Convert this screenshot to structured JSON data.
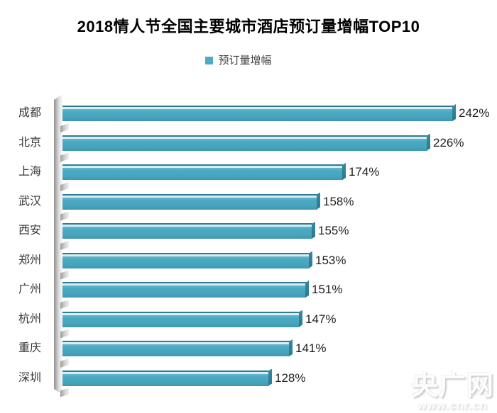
{
  "title": "2018情人节全国主要城市酒店预订量增幅TOP10",
  "legend": {
    "label": "预订量增幅",
    "swatch_color": "#4BACC6"
  },
  "chart_data": {
    "type": "bar",
    "orientation": "horizontal",
    "style": "3d",
    "title": "2018情人节全国主要城市酒店预订量增幅TOP10",
    "series_name": "预订量增幅",
    "categories": [
      "成都",
      "北京",
      "上海",
      "武汉",
      "西安",
      "郑州",
      "广州",
      "杭州",
      "重庆",
      "深圳"
    ],
    "values": [
      242,
      226,
      174,
      158,
      155,
      153,
      151,
      147,
      141,
      128
    ],
    "value_labels": [
      "242%",
      "226%",
      "174%",
      "158%",
      "155%",
      "153%",
      "151%",
      "147%",
      "141%",
      "128%"
    ],
    "unit": "%",
    "xlim": [
      0,
      242
    ],
    "grid": false,
    "legend_position": "top-center",
    "bar_color": "#4BACC6"
  },
  "watermark": {
    "logo": "央广网",
    "url": "www.cnr.cn"
  },
  "colors": {
    "bar": "#4BACC6",
    "bar_top_line": "#2E7E93",
    "bar_highlight": "#D8ECF1",
    "bar_cap": "#2C7A8E",
    "wall_gray": "#B3B3B3",
    "title_text": "#000000",
    "category_text": "#383838",
    "value_text": "#1F1F1F",
    "legend_text": "#404040"
  }
}
